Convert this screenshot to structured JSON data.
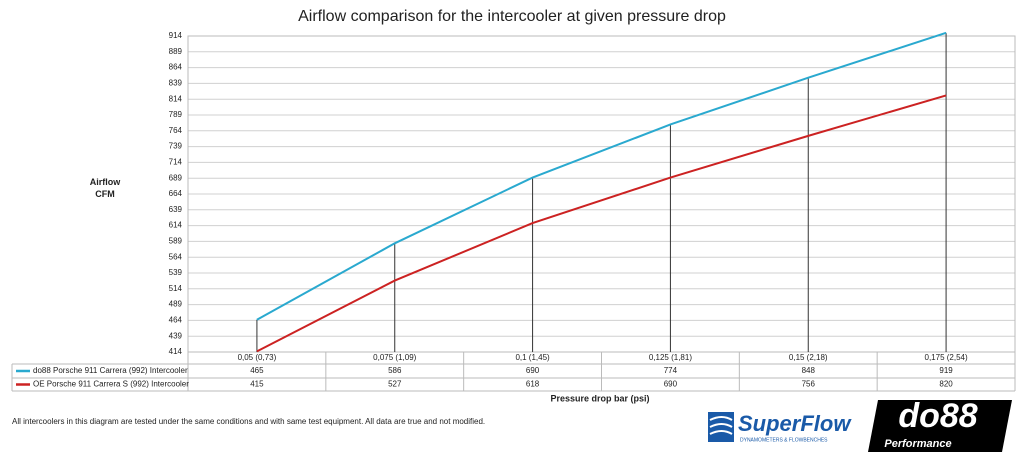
{
  "chart_data": {
    "type": "line",
    "title": "Airflow comparison for the intercooler at given pressure drop",
    "ylabel": "Airflow CFM",
    "xlabel": "Pressure drop bar (psi)",
    "categories": [
      "0,05 (0,73)",
      "0,075 (1,09)",
      "0,1 (1,45)",
      "0,125 (1,81)",
      "0,15 (2,18)",
      "0,175 (2,54)"
    ],
    "series": [
      {
        "name": "do88 Porsche 911 Carrera (992) Intercooler",
        "color": "#2aa9cf",
        "values": [
          465,
          586,
          690,
          774,
          848,
          919
        ]
      },
      {
        "name": "OE Porsche 911 Carrera S (992) Intercooler",
        "color": "#cc2222",
        "values": [
          415,
          527,
          618,
          690,
          756,
          820
        ]
      }
    ],
    "ylim": [
      414,
      914
    ],
    "yticks": [
      414,
      439,
      464,
      489,
      514,
      539,
      564,
      589,
      614,
      639,
      664,
      689,
      714,
      739,
      764,
      789,
      814,
      839,
      864,
      889,
      914
    ],
    "grid": true,
    "note": "All intercoolers in this diagram are tested under the same conditions and with same test equipment. All data are true and not modified.",
    "logos": [
      "SuperFlow",
      "DYNAMOMETERS & FLOWBENCHES",
      "do88",
      "Performance"
    ]
  }
}
